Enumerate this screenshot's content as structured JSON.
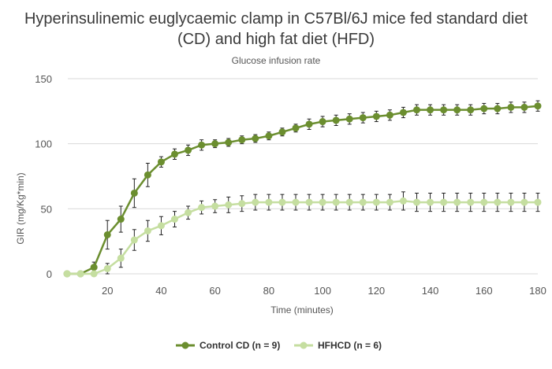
{
  "chart_data": {
    "type": "line",
    "title_lines": [
      "Hyperinsulinemic euglycaemic clamp in C57Bl/6J mice fed standard diet",
      "(CD) and high fat diet (HFD)"
    ],
    "subtitle": "Glucose infusion rate",
    "xlabel": "Time (minutes)",
    "ylabel": "GIR (mg/Kg*min)",
    "xlim": [
      0,
      180
    ],
    "ylim": [
      0,
      150
    ],
    "xticks": [
      20,
      40,
      60,
      80,
      100,
      120,
      140,
      160,
      180
    ],
    "yticks": [
      0,
      50,
      100,
      150
    ],
    "grid": "horizontal",
    "legend_position": "bottom",
    "x": [
      5,
      10,
      15,
      20,
      25,
      30,
      35,
      40,
      45,
      50,
      55,
      60,
      65,
      70,
      75,
      80,
      85,
      90,
      95,
      100,
      105,
      110,
      115,
      120,
      125,
      130,
      135,
      140,
      145,
      150,
      155,
      160,
      165,
      170,
      175,
      180
    ],
    "series": [
      {
        "name": "Control CD (n = 9)",
        "color": "#6b8e2f",
        "values": [
          0,
          0,
          5,
          30,
          42,
          62,
          76,
          86,
          92,
          95,
          99,
          100,
          101,
          103,
          104,
          106,
          109,
          112,
          115,
          117,
          118,
          119,
          120,
          121,
          122,
          124,
          126,
          126,
          126,
          126,
          126,
          127,
          127,
          128,
          128,
          129
        ],
        "errors": [
          0,
          0,
          4,
          11,
          10,
          11,
          9,
          4,
          4,
          4,
          4,
          3,
          3,
          3,
          3,
          3,
          3,
          3,
          4,
          4,
          4,
          4,
          4,
          4,
          4,
          4,
          4,
          4,
          4,
          4,
          4,
          4,
          4,
          4,
          4,
          4
        ]
      },
      {
        "name": "HFHCD (n = 6)",
        "color": "#c5dea0",
        "values": [
          0,
          0,
          0,
          4,
          12,
          26,
          33,
          37,
          42,
          47,
          51,
          52,
          53,
          54,
          55,
          55,
          55,
          55,
          55,
          55,
          55,
          55,
          55,
          55,
          55,
          56,
          55,
          55,
          55,
          55,
          55,
          55,
          55,
          55,
          55,
          55
        ],
        "errors": [
          0,
          0,
          0,
          4,
          7,
          8,
          8,
          7,
          6,
          5,
          5,
          5,
          6,
          6,
          6,
          6,
          6,
          6,
          6,
          6,
          6,
          6,
          6,
          6,
          6,
          7,
          7,
          7,
          7,
          7,
          7,
          7,
          7,
          7,
          7,
          7
        ]
      }
    ]
  }
}
